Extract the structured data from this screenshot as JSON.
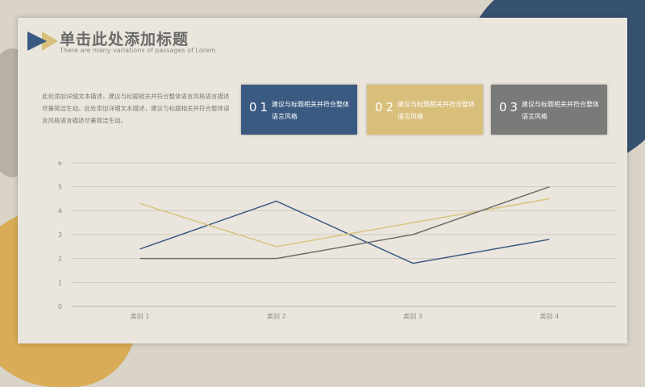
{
  "slide": {
    "title": "单击此处添加标题",
    "subtitle": "There are many variations of passages of Lorem",
    "paragraph": "此处添加详细文本描述，建议与标题相关并符合整体语言风格语言描述尽量简洁生动。此处添加详细文本描述，建议与标题相关并符合整体语言风格语言描述尽量简洁生动。",
    "boxes": [
      {
        "num": "01",
        "text": "建议与标题相关并符合整体语言风格",
        "color": "#3a5a82"
      },
      {
        "num": "02",
        "text": "建议与标题相关并符合整体语言风格",
        "color": "#d8bf7c"
      },
      {
        "num": "03",
        "text": "建议与标题相关并符合整体语言风格",
        "color": "#7a7a78"
      }
    ]
  },
  "chart_data": {
    "type": "line",
    "categories": [
      "类别 1",
      "类别 2",
      "类别 3",
      "类别 4"
    ],
    "yticks": [
      "0",
      "1",
      "2",
      "3",
      "4",
      "5",
      "6"
    ],
    "ylim": [
      0,
      6
    ],
    "grid": true,
    "series": [
      {
        "values": [
          2.4,
          4.4,
          1.8,
          2.8
        ],
        "color": "#3a5a82"
      },
      {
        "values": [
          4.3,
          2.5,
          3.5,
          4.5
        ],
        "color": "#d8c47f"
      },
      {
        "values": [
          2.0,
          2.0,
          3.0,
          5.0
        ],
        "color": "#6e6e6e"
      }
    ]
  }
}
